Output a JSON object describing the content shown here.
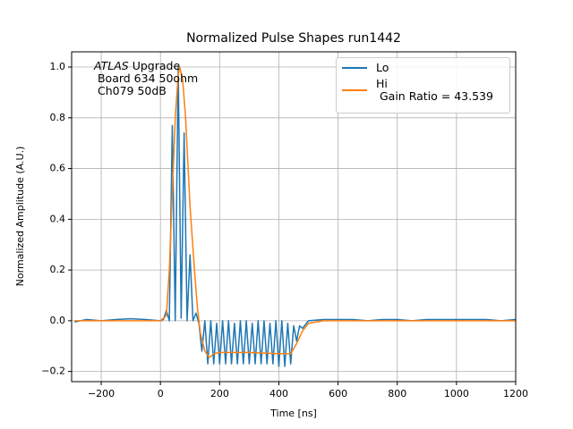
{
  "chart_data": {
    "type": "line",
    "title": "Normalized Pulse Shapes run1442",
    "x_label": "Time [ns]",
    "y_label": "Normalized Amplitude (A.U.)",
    "annotation": {
      "emphasis": "ATLAS",
      "text": " Upgrade\n Board 634 50ohm\n Ch079 50dB"
    },
    "xlim": [
      -300,
      1200
    ],
    "ylim": [
      -0.24,
      1.06
    ],
    "xticks": [
      {
        "value": -200,
        "label": "−200"
      },
      0,
      200,
      400,
      600,
      800,
      1000,
      1200
    ],
    "yticks": [
      {
        "value": -0.2,
        "label": "−0.2"
      },
      {
        "value": 0,
        "label": "0.0"
      },
      0.2,
      0.4,
      0.6,
      0.8,
      {
        "value": 1,
        "label": "1.0"
      }
    ],
    "grid": true,
    "legend": "upper right",
    "series": [
      {
        "name": "Lo",
        "color": "#1f77b4",
        "x": [
          -290,
          -250,
          -200,
          -150,
          -100,
          -50,
          0,
          10,
          20,
          30,
          40,
          50,
          60,
          70,
          80,
          90,
          100,
          110,
          120,
          130,
          140,
          150,
          160,
          170,
          180,
          190,
          200,
          210,
          220,
          230,
          240,
          250,
          260,
          270,
          280,
          290,
          300,
          310,
          320,
          330,
          340,
          350,
          360,
          370,
          380,
          390,
          400,
          410,
          420,
          430,
          440,
          450,
          460,
          470,
          480,
          500,
          550,
          600,
          650,
          700,
          750,
          800,
          850,
          900,
          950,
          1000,
          1050,
          1100,
          1150,
          1200
        ],
        "values": [
          -0.005,
          0.005,
          0.0,
          0.005,
          0.008,
          0.005,
          0.0,
          0.005,
          0.04,
          0.0,
          0.77,
          0.0,
          1.0,
          0.01,
          0.74,
          0.0,
          0.26,
          0.0,
          0.03,
          -0.01,
          -0.12,
          0.0,
          -0.17,
          0.0,
          -0.17,
          -0.01,
          -0.17,
          0.0,
          -0.17,
          0.0,
          -0.17,
          -0.01,
          -0.17,
          0.0,
          -0.17,
          0.0,
          -0.17,
          -0.01,
          -0.17,
          0.0,
          -0.17,
          0.0,
          -0.17,
          -0.01,
          -0.17,
          0.0,
          -0.18,
          0.0,
          -0.18,
          -0.01,
          -0.17,
          -0.02,
          -0.08,
          -0.02,
          -0.03,
          0.0,
          0.005,
          0.005,
          0.005,
          0.0,
          0.005,
          0.005,
          0.0,
          0.005,
          0.005,
          0.005,
          0.005,
          0.005,
          0.0,
          0.005
        ]
      },
      {
        "name": "Hi\n Gain Ratio = 43.539",
        "color": "#ff7f0e",
        "x": [
          -290,
          -200,
          -100,
          0,
          20,
          30,
          40,
          50,
          60,
          65,
          75,
          85,
          100,
          115,
          125,
          135,
          150,
          165,
          180,
          200,
          300,
          400,
          440,
          460,
          480,
          500,
          550,
          800,
          1200
        ],
        "values": [
          0.0,
          0.0,
          0.0,
          0.0,
          0.02,
          0.2,
          0.5,
          0.8,
          0.97,
          1.0,
          0.95,
          0.8,
          0.45,
          0.2,
          0.05,
          -0.05,
          -0.12,
          -0.145,
          -0.13,
          -0.125,
          -0.125,
          -0.13,
          -0.13,
          -0.09,
          -0.04,
          -0.01,
          0.0,
          0.0,
          0.0
        ]
      }
    ]
  }
}
